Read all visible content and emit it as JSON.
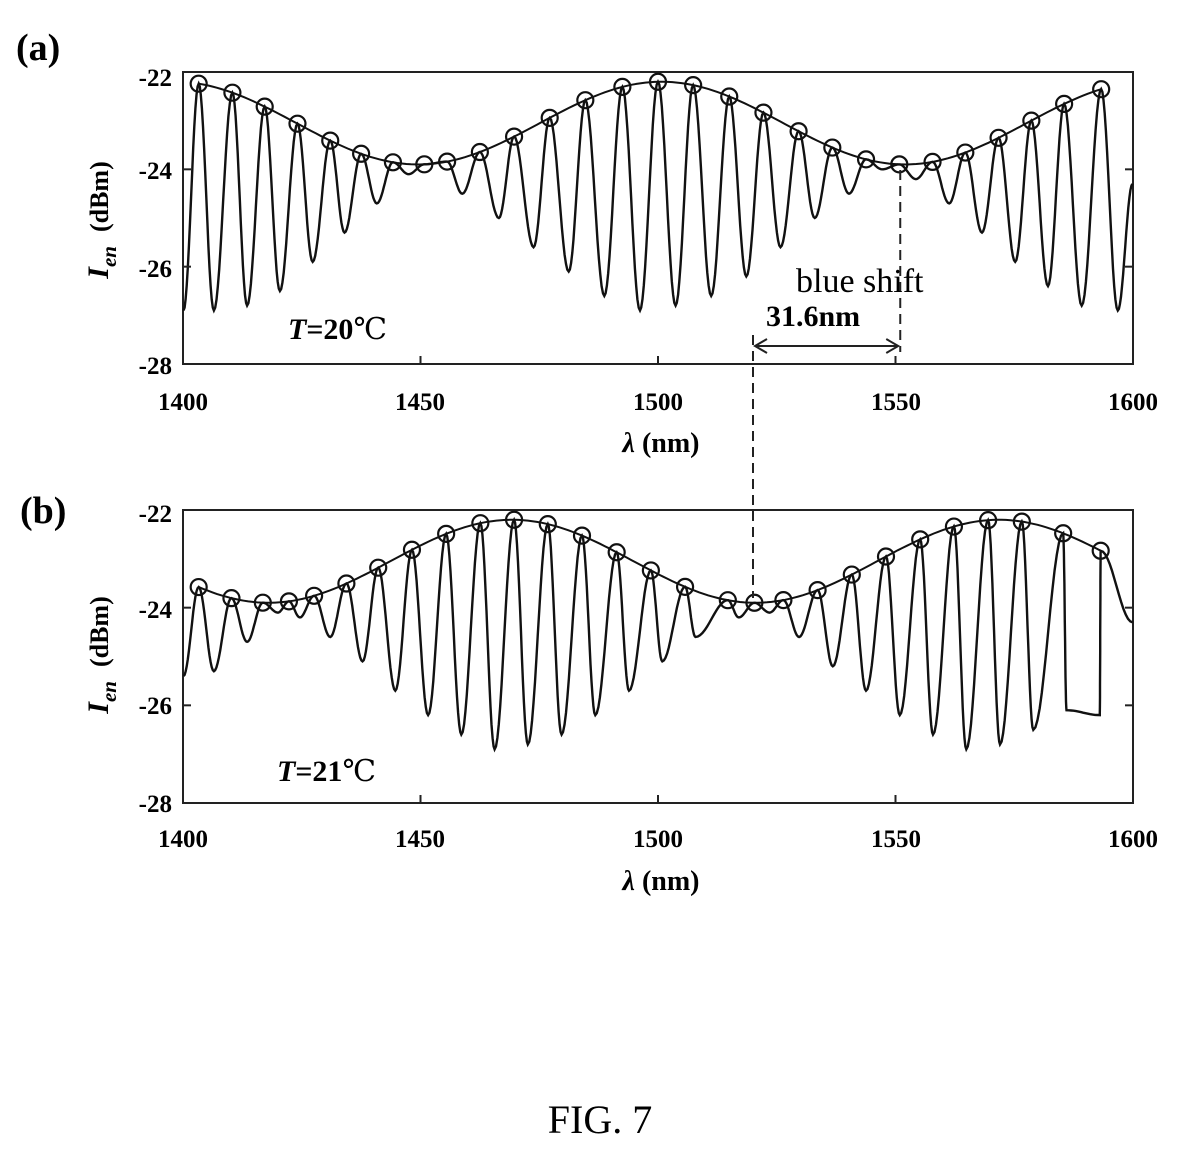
{
  "caption": "FIG. 7",
  "shift_annotation": {
    "label": "blue shift",
    "amount": "31.6nm",
    "from_nm": 1551,
    "to_nm": 1520
  },
  "chart_data": [
    {
      "panel_label": "(a)",
      "type": "line",
      "temperature": {
        "var": "T",
        "value": "=20",
        "unit": "℃"
      },
      "xlabel": {
        "symbol": "λ",
        "unit": "(nm)"
      },
      "ylabel": {
        "symbol": "I",
        "subscript": "en",
        "unit": "(dBm)"
      },
      "xlim": [
        1400,
        1600
      ],
      "ylim": [
        -28,
        -22
      ],
      "xticks": [
        "1400",
        "1450",
        "1500",
        "1550",
        "1600"
      ],
      "yticks": [
        "-22",
        "-24",
        "-26",
        "-28"
      ],
      "grid": false,
      "legend": "none",
      "fringe_period_nm": 7.3,
      "envelope_minima_nm": [
        1449.5,
        1552
      ],
      "envelope_period_nm": 102.5,
      "envelope_range_dBm": [
        -23.9,
        -22.2
      ],
      "marker_x_nm": [
        1403.3,
        1410.4,
        1417.2,
        1424.1,
        1431.0,
        1437.5,
        1444.2,
        1450.8,
        1455.6,
        1462.5,
        1469.7,
        1477.2,
        1484.7,
        1492.5,
        1500.0,
        1507.4,
        1515.0,
        1522.2,
        1529.6,
        1536.7,
        1543.8,
        1550.8,
        1557.8,
        1564.7,
        1571.7,
        1578.6,
        1585.5,
        1593.3
      ],
      "fringe_min_x_nm": [
        1406.5,
        1413.5,
        1420.4,
        1427.3,
        1434.0,
        1440.8,
        1447.5,
        1458.8,
        1466.5,
        1473.8,
        1481.2,
        1488.7,
        1496.2,
        1503.7,
        1511.2,
        1518.6,
        1525.8,
        1533.0,
        1540.2,
        1547.2,
        1554.3,
        1561.3,
        1568.2,
        1575.2,
        1582.1,
        1589.2,
        1596.8
      ],
      "fringe_min_y_dBm": [
        -26.9,
        -26.8,
        -26.5,
        -25.9,
        -25.3,
        -24.7,
        -24.1,
        -24.5,
        -25.0,
        -25.6,
        -26.1,
        -26.6,
        -26.9,
        -26.8,
        -26.6,
        -26.2,
        -25.6,
        -25.0,
        -24.5,
        -24.0,
        -24.2,
        -24.7,
        -25.3,
        -25.9,
        -26.4,
        -26.8,
        -26.9
      ]
    },
    {
      "panel_label": "(b)",
      "type": "line",
      "temperature": {
        "var": "T",
        "value": "=21",
        "unit": "℃"
      },
      "xlabel": {
        "symbol": "λ",
        "unit": "(nm)"
      },
      "ylabel": {
        "symbol": "I",
        "subscript": "en",
        "unit": "(dBm)"
      },
      "xlim": [
        1400,
        1600
      ],
      "ylim": [
        -28,
        -22
      ],
      "xticks": [
        "1400",
        "1450",
        "1500",
        "1550",
        "1600"
      ],
      "yticks": [
        "-22",
        "-24",
        "-26",
        "-28"
      ],
      "grid": false,
      "legend": "none",
      "fringe_period_nm": 7.3,
      "envelope_minima_nm": [
        1418,
        1520.5
      ],
      "envelope_period_nm": 102.5,
      "envelope_range_dBm": [
        -23.9,
        -22.2
      ],
      "marker_x_nm": [
        1403.3,
        1410.2,
        1416.8,
        1422.3,
        1427.6,
        1434.4,
        1441.1,
        1448.2,
        1455.4,
        1462.6,
        1469.7,
        1476.8,
        1484.0,
        1491.3,
        1498.5,
        1505.7,
        1514.7,
        1520.3,
        1526.4,
        1533.6,
        1540.8,
        1548.0,
        1555.2,
        1562.3,
        1569.5,
        1576.6,
        1585.3,
        1593.2
      ],
      "fringe_min_x_nm": [
        1406.5,
        1413.5,
        1420.0,
        1424.6,
        1431.0,
        1437.8,
        1444.7,
        1451.6,
        1458.6,
        1465.6,
        1472.6,
        1479.7,
        1486.8,
        1493.9,
        1500.9,
        1507.9,
        1517.0,
        1523.5,
        1529.7,
        1536.8,
        1543.8,
        1550.9,
        1557.9,
        1564.9,
        1572.0,
        1579.0,
        1586.0,
        1593.0
      ],
      "fringe_min_y_dBm": [
        -25.3,
        -24.7,
        -24.1,
        -24.2,
        -24.6,
        -25.1,
        -25.7,
        -26.2,
        -26.6,
        -26.9,
        -26.8,
        -26.6,
        -26.2,
        -25.7,
        -25.1,
        -24.6,
        -24.2,
        -24.1,
        -24.6,
        -25.2,
        -25.7,
        -26.2,
        -26.6,
        -26.9,
        -26.8,
        -26.5,
        -26.1,
        -26.2
      ]
    }
  ]
}
